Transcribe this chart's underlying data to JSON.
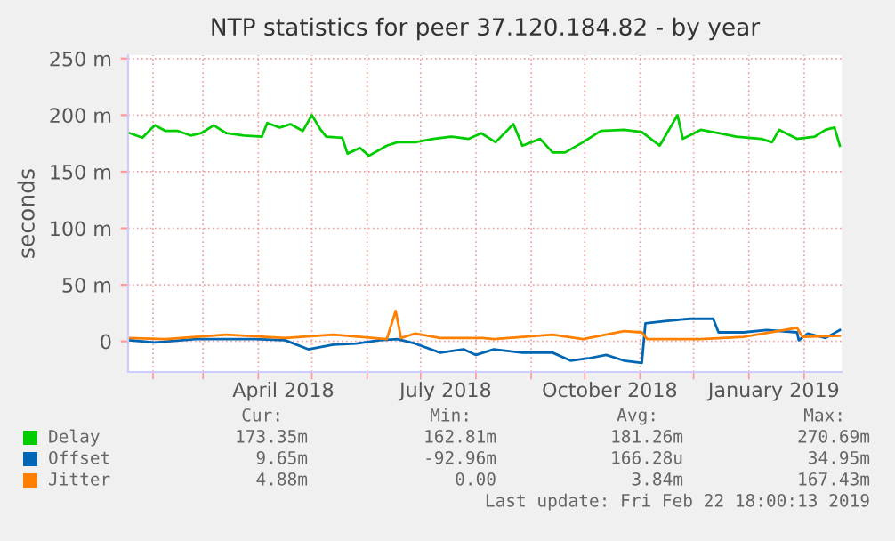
{
  "chart_data": {
    "type": "line",
    "title": "NTP statistics for peer 37.120.184.82 - by year",
    "ylabel": "seconds",
    "xlim": [
      "2018-01-18",
      "2019-02-22"
    ],
    "xticks": [
      {
        "value": "2018-02-01",
        "label": null
      },
      {
        "value": "2018-03-01",
        "label": null
      },
      {
        "value": "2018-04-01",
        "label": null
      },
      {
        "value": "2018-05-01",
        "label": null
      },
      {
        "value": "2018-06-01",
        "label": null
      },
      {
        "value": "2018-07-01",
        "label": null
      },
      {
        "value": "2018-08-01",
        "label": null
      },
      {
        "value": "2018-09-01",
        "label": null
      },
      {
        "value": "2018-10-01",
        "label": null
      },
      {
        "value": "2018-11-01",
        "label": null
      },
      {
        "value": "2018-12-01",
        "label": null
      },
      {
        "value": "2019-01-01",
        "label": null
      },
      {
        "value": "2019-02-01",
        "label": null
      },
      {
        "value": "2018-04-15",
        "label": "April 2018"
      },
      {
        "value": "2018-07-15",
        "label": "July 2018"
      },
      {
        "value": "2018-10-15",
        "label": "October 2018"
      },
      {
        "value": "2019-01-15",
        "label": "January 2019"
      }
    ],
    "ylim": [
      -27,
      253
    ],
    "yticks": [
      0,
      {
        "value": 50,
        "label": "50 m"
      },
      {
        "value": 100,
        "label": "100 m"
      },
      {
        "value": 150,
        "label": "150 m"
      },
      {
        "value": 200,
        "label": "200 m"
      },
      {
        "value": 250,
        "label": "250 m"
      }
    ],
    "grid": true,
    "legend": "bottom",
    "series": [
      {
        "name": "Delay",
        "color": "#00cc00",
        "x": [
          "2018-01-19",
          "2018-01-26",
          "2018-02-02",
          "2018-02-08",
          "2018-02-15",
          "2018-02-22",
          "2018-02-28",
          "2018-03-07",
          "2018-03-14",
          "2018-03-24",
          "2018-04-03",
          "2018-04-06",
          "2018-04-13",
          "2018-04-19",
          "2018-04-26",
          "2018-05-01",
          "2018-05-06",
          "2018-05-09",
          "2018-05-18",
          "2018-05-21",
          "2018-05-28",
          "2018-06-02",
          "2018-06-12",
          "2018-06-18",
          "2018-06-28",
          "2018-07-08",
          "2018-07-18",
          "2018-07-28",
          "2018-08-04",
          "2018-08-12",
          "2018-08-22",
          "2018-08-27",
          "2018-09-06",
          "2018-09-13",
          "2018-09-20",
          "2018-09-30",
          "2018-10-10",
          "2018-10-23",
          "2018-11-02",
          "2018-11-12",
          "2018-11-22",
          "2018-11-25",
          "2018-12-05",
          "2018-12-15",
          "2018-12-25",
          "2019-01-08",
          "2019-01-14",
          "2019-01-18",
          "2019-01-28",
          "2019-02-07",
          "2019-02-13",
          "2019-02-18",
          "2019-02-21"
        ],
        "values": [
          184,
          180,
          191,
          186,
          186,
          182,
          184,
          191,
          184,
          182,
          181,
          193,
          189,
          192,
          186,
          200,
          187,
          181,
          180,
          166,
          171,
          164,
          173,
          176,
          176,
          179,
          181,
          179,
          184,
          176,
          192,
          173,
          179,
          167,
          167,
          176,
          186,
          187,
          185,
          173,
          200,
          179,
          187,
          184,
          181,
          179,
          176,
          187,
          179,
          181,
          187,
          189,
          173
        ]
      },
      {
        "name": "Offset",
        "color": "#0066b3",
        "x": [
          "2018-01-19",
          "2018-02-02",
          "2018-02-25",
          "2018-03-30",
          "2018-04-16",
          "2018-04-29",
          "2018-05-13",
          "2018-05-26",
          "2018-06-08",
          "2018-06-18",
          "2018-06-28",
          "2018-07-12",
          "2018-07-25",
          "2018-08-01",
          "2018-08-11",
          "2018-08-27",
          "2018-09-13",
          "2018-09-23",
          "2018-10-03",
          "2018-10-13",
          "2018-10-23",
          "2018-11-02",
          "2018-11-04",
          "2018-11-15",
          "2018-11-29",
          "2018-12-12",
          "2018-12-15",
          "2018-12-29",
          "2019-01-11",
          "2019-01-28",
          "2019-01-29",
          "2019-02-03",
          "2019-02-13",
          "2019-02-21"
        ],
        "values": [
          1,
          -1,
          2,
          2,
          1,
          -7,
          -3,
          -2,
          1,
          2,
          -2,
          -10,
          -7,
          -12,
          -7,
          -10,
          -10,
          -17,
          -15,
          -12,
          -17,
          -19,
          16,
          18,
          20,
          20,
          8,
          8,
          10,
          8,
          1,
          7,
          3,
          10
        ]
      },
      {
        "name": "Jitter",
        "color": "#ff8000",
        "x": [
          "2018-01-19",
          "2018-02-08",
          "2018-03-14",
          "2018-04-16",
          "2018-05-13",
          "2018-06-12",
          "2018-06-17",
          "2018-06-20",
          "2018-06-28",
          "2018-07-12",
          "2018-08-05",
          "2018-08-11",
          "2018-09-13",
          "2018-09-30",
          "2018-10-23",
          "2018-11-02",
          "2018-11-05",
          "2018-12-05",
          "2018-12-29",
          "2019-01-28",
          "2019-01-31",
          "2019-02-21"
        ],
        "values": [
          3,
          2,
          6,
          3,
          6,
          2,
          27,
          3,
          7,
          3,
          3,
          2,
          6,
          2,
          9,
          8,
          2,
          2,
          4,
          12,
          4,
          5
        ]
      }
    ],
    "annotations": [
      "Cur:",
      "Min:",
      "Avg:",
      "Max:",
      "173.35m",
      "162.81m",
      "181.26m",
      "270.69m",
      "9.65m",
      "-92.96m",
      "166.28u",
      "34.95m",
      "4.88m",
      "0.00",
      "3.84m",
      "167.43m",
      "Last update: Fri Feb 22 18:00:13 2019"
    ]
  }
}
